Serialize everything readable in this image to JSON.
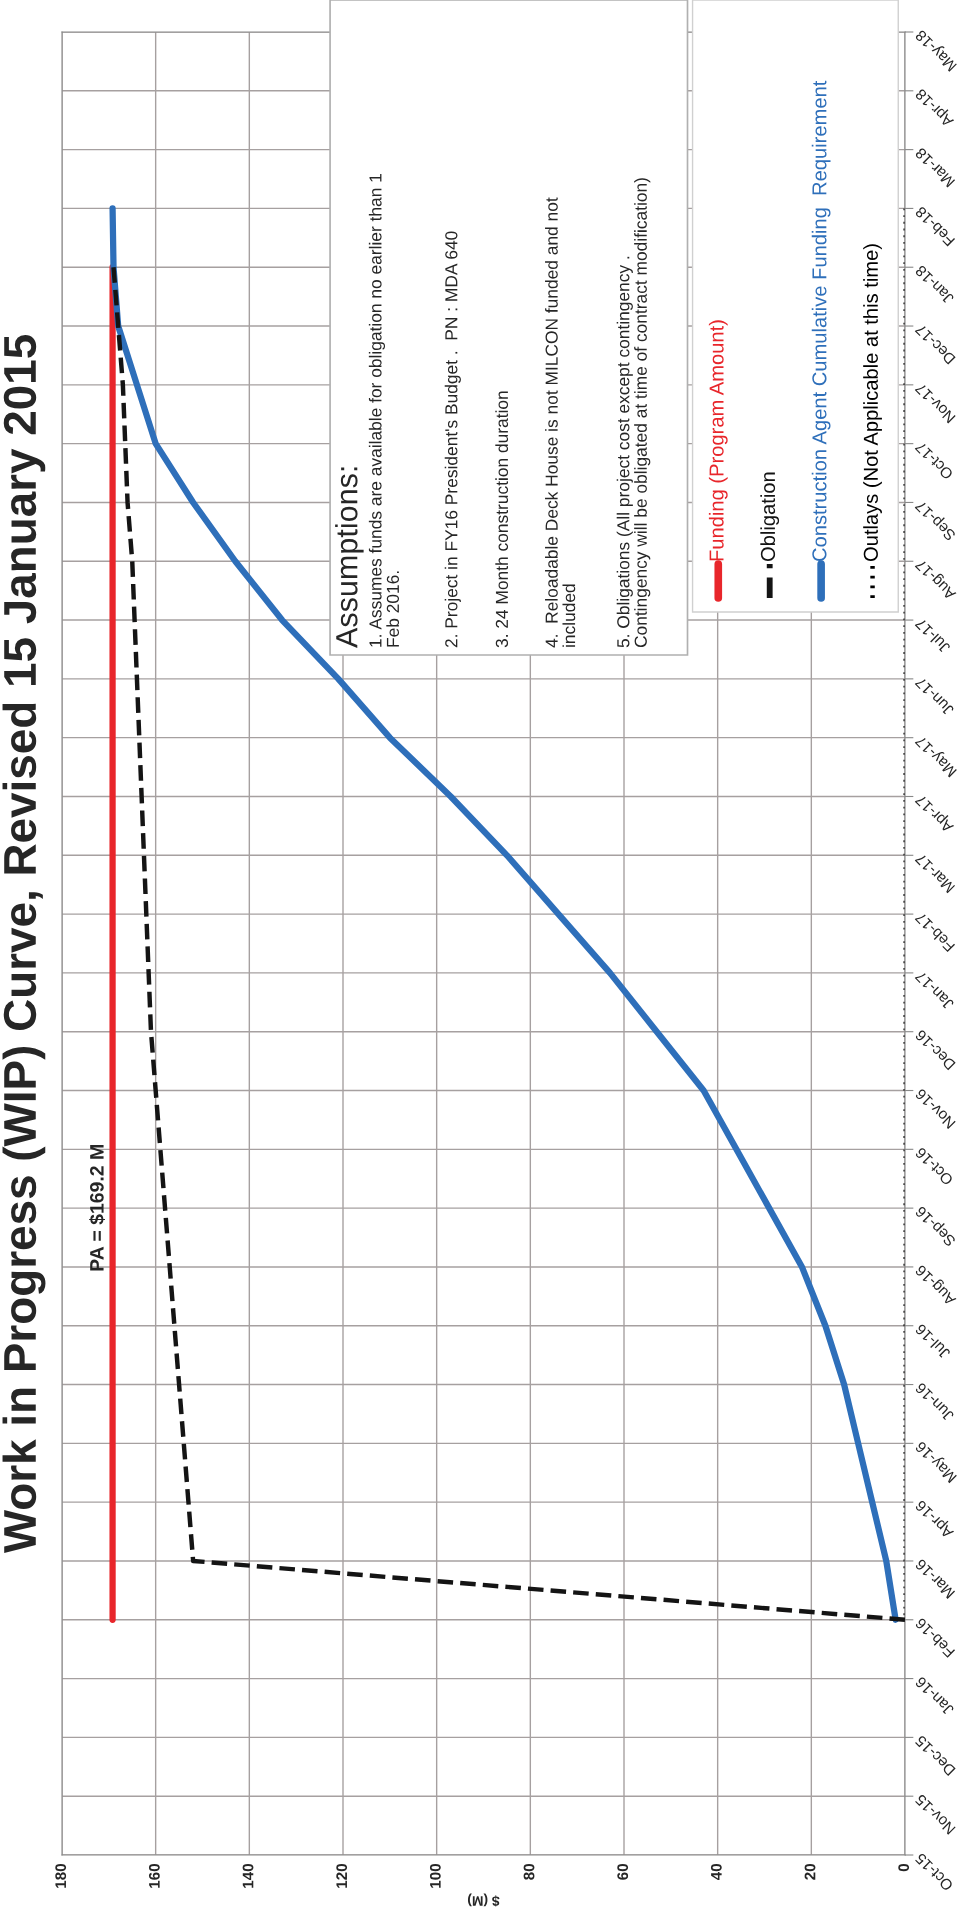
{
  "chart_data": {
    "type": "line",
    "title": "Work in Progress (WIP) Curve, Revised 15 January 2015",
    "xlabel": "$ (M)",
    "orientation": "horizontal",
    "categories": [
      "May-18",
      "Apr-18",
      "Mar-18",
      "Feb-18",
      "Jan-18",
      "Dec-17",
      "Nov-17",
      "Oct-17",
      "Sep-17",
      "Aug-17",
      "Jul-17",
      "Jun-17",
      "May-17",
      "Apr-17",
      "Mar-17",
      "Feb-17",
      "Jan-17",
      "Dec-16",
      "Nov-16",
      "Oct-16",
      "Sep-16",
      "Aug-16",
      "Jul-16",
      "Jun-16",
      "May-16",
      "Apr-16",
      "Mar-16",
      "Feb-16",
      "Jan-16",
      "Dec-15",
      "Nov-15",
      "Oct-15"
    ],
    "series": [
      {
        "name": "Funding (Program Amount)",
        "color": "#e8262b",
        "line_style": "solid",
        "values": [
          null,
          null,
          null,
          null,
          169.2,
          169.2,
          169.2,
          169.2,
          169.2,
          169.2,
          169.2,
          169.2,
          169.2,
          169.2,
          169.2,
          169.2,
          169.2,
          169.2,
          169.2,
          169.2,
          169.2,
          169.2,
          169.2,
          169.2,
          169.2,
          169.2,
          169.2,
          169.2,
          null,
          null,
          null,
          null
        ]
      },
      {
        "name": "Obligation",
        "color": "#141414",
        "line_style": "dashed",
        "values": [
          null,
          null,
          null,
          null,
          169,
          168,
          167,
          166.5,
          166,
          165,
          164.5,
          164,
          163.5,
          163,
          162.5,
          162,
          161.5,
          161,
          160,
          159,
          158,
          157,
          156,
          155,
          154,
          153,
          152,
          0,
          null,
          null,
          null,
          null
        ]
      },
      {
        "name": "Construction Agent Cumulative Funding  Requirement",
        "color": "#2e6fba",
        "line_style": "solid",
        "values": [
          null,
          null,
          null,
          169.2,
          169,
          168,
          164,
          160,
          152,
          143,
          133,
          121,
          110,
          97,
          85,
          74,
          63,
          53,
          43,
          36,
          29,
          22,
          17,
          13,
          10,
          7,
          4,
          2,
          null,
          null,
          null,
          null
        ]
      },
      {
        "name": "Outlays (Not Applicable at this time)",
        "color": "#000000",
        "line_style": "dotted",
        "values": [
          null,
          null,
          null,
          0,
          0,
          0,
          0,
          0,
          0,
          0,
          0,
          0,
          0,
          0,
          0,
          0,
          0,
          0,
          0,
          0,
          0,
          0,
          0,
          0,
          0,
          0,
          0,
          0,
          null,
          null,
          null,
          null
        ]
      }
    ],
    "xlim": [
      180,
      0
    ],
    "xticks": [
      180,
      160,
      140,
      120,
      100,
      80,
      60,
      40,
      20,
      0
    ],
    "grid": true,
    "legend": "top right",
    "marker": "none",
    "annotations": [
      "PA = $169.2 M",
      "Assumptions:",
      "1. Assumes funds are available for obligation no earlier than 1\nFeb 2016.",
      "2. Project in FY16 President's Budget .  PN : MDA 640",
      "3. 24 Month construction duration",
      "4.  Reloadable Deck House is not MILCON funded and not\nincluded",
      "5. Obligations (All project cost except contingency .\nContingency will be obligated at time of contract modification)"
    ]
  }
}
